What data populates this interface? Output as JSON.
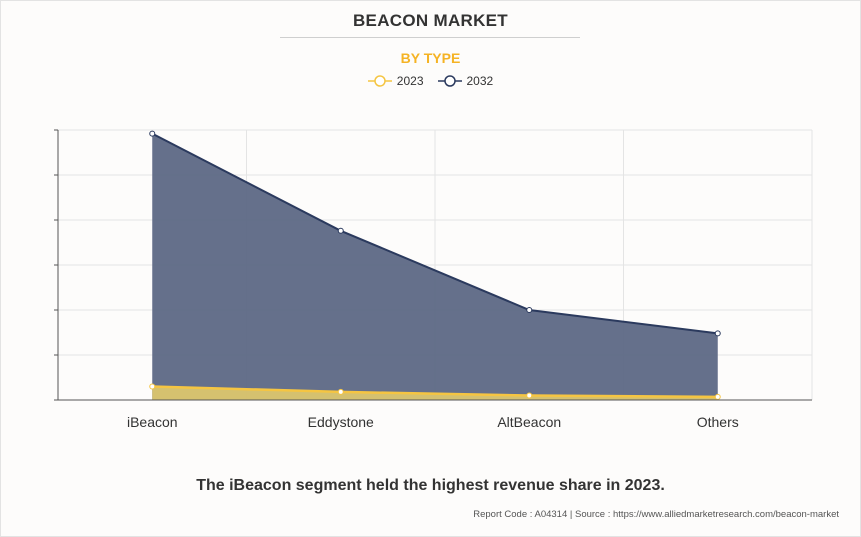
{
  "header": {
    "title": "BEACON MARKET",
    "subtitle": "BY TYPE"
  },
  "legend": [
    {
      "label": "2023",
      "color": "#f5c542"
    },
    {
      "label": "2032",
      "color": "#2b3a5e"
    }
  ],
  "chart_data": {
    "type": "area",
    "categories": [
      "iBeacon",
      "Eddystone",
      "AltBeacon",
      "Others"
    ],
    "series": [
      {
        "name": "2023",
        "values": [
          1.5,
          0.9,
          0.5,
          0.35
        ],
        "color": "#f5c542",
        "fill": "#e9cf6a"
      },
      {
        "name": "2032",
        "values": [
          29.6,
          18.8,
          10.0,
          7.4
        ],
        "color": "#2b3a5e",
        "fill": "#5d6885"
      }
    ],
    "ylim": [
      0,
      30
    ],
    "yticks": [
      0,
      5,
      10,
      15,
      20,
      25,
      30
    ],
    "y_tick_labels_shown": false,
    "grid": true,
    "legend_position": "top-center"
  },
  "footer": {
    "caption": "The iBeacon segment held the highest revenue share in 2023.",
    "source": "Report Code : A04314  |  Source : https://www.alliedmarketresearch.com/beacon-market"
  }
}
